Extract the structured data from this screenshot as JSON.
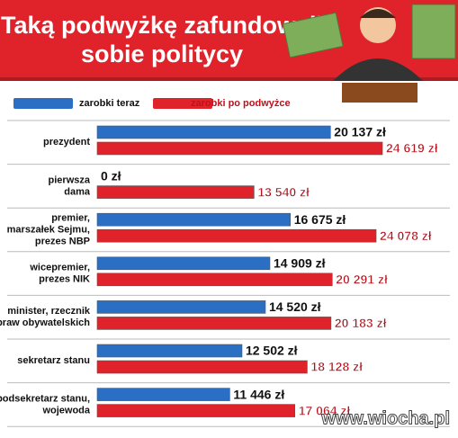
{
  "chart_data": {
    "type": "bar",
    "orientation": "horizontal",
    "title": [
      "Taką podwyżkę zafundowali",
      "sobie politycy"
    ],
    "categories": [
      [
        "prezydent"
      ],
      [
        "pierwsza",
        "dama"
      ],
      [
        "premier,",
        "marszałek Sejmu,",
        "prezes NBP"
      ],
      [
        "wicepremier,",
        "prezes NIK"
      ],
      [
        "minister, rzecznik",
        "praw obywatelskich"
      ],
      [
        "sekretarz stanu"
      ],
      [
        "podsekretarz stanu,",
        "wojewoda"
      ]
    ],
    "series": [
      {
        "name": "zarobki teraz",
        "color": "#2a6fc4",
        "values": [
          20137,
          0,
          16675,
          14909,
          14520,
          12502,
          11446
        ],
        "value_labels": [
          "20 137 zł",
          "0 zł",
          "16 675 zł",
          "14 909 zł",
          "14 520 zł",
          "12 502 zł",
          "11 446 zł"
        ]
      },
      {
        "name": "zarobki po podwyżce",
        "color": "#e0232b",
        "values": [
          24619,
          13540,
          24078,
          20291,
          20183,
          18128,
          17064
        ],
        "value_labels": [
          "24 619 zł",
          "13 540 zł",
          "24 078 zł",
          "20 291 zł",
          "20 183 zł",
          "18 128 zł",
          "17 064 zł"
        ]
      }
    ],
    "watermark": "www.wiocha.pl"
  }
}
